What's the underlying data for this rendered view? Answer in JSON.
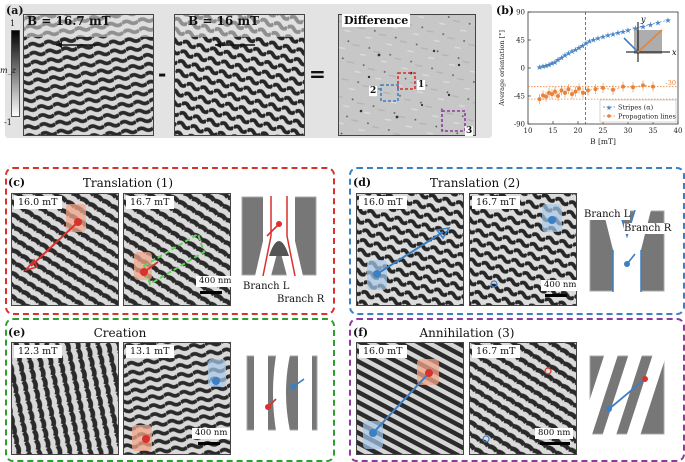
{
  "panel_a": {
    "label": "(a)",
    "img1_tag": "B = 16.7 mT",
    "img2_tag": "B = 16 mT",
    "diff_tag": "Difference",
    "minus": "-",
    "equals": "=",
    "colorbar_label": "m_z",
    "colorbar_max": "1",
    "colorbar_min": "-1",
    "box_labels": [
      "1",
      "2",
      "3"
    ]
  },
  "panel_b": {
    "label": "(b)",
    "chart_data": {
      "type": "scatter",
      "xlabel": "B [mT]",
      "ylabel": "Average orientation [°]",
      "xlim": [
        10,
        40
      ],
      "ylim": [
        -90,
        90
      ],
      "xticks": [
        "10",
        "15",
        "20",
        "25",
        "30",
        "35",
        "40"
      ],
      "yticks": [
        "-90",
        "-45",
        "0",
        "45",
        "90"
      ],
      "vline": 21.5,
      "hlines": [
        -30,
        -50
      ],
      "hline_labels": [
        "-30",
        "-50"
      ],
      "series": [
        {
          "name": "Stripes (α)",
          "marker": "star",
          "color": "#4a86c5",
          "x": [
            12.3,
            13,
            13.6,
            14.2,
            14.8,
            15.4,
            16,
            16.7,
            17.4,
            18.1,
            18.8,
            19.5,
            20.2,
            20.9,
            21.6,
            22.3,
            23.1,
            24,
            25,
            26,
            27,
            28,
            29,
            30,
            31.5,
            33,
            34.5,
            36,
            38
          ],
          "y": [
            2,
            3,
            4,
            6,
            8,
            10,
            14,
            17,
            21,
            24,
            27,
            30,
            33,
            36,
            40,
            43,
            46,
            48,
            51,
            53,
            55,
            57,
            59,
            61,
            64,
            67,
            70,
            73,
            77
          ]
        },
        {
          "name": "Propagation lines",
          "marker": "circle",
          "color": "#e8833a",
          "x": [
            12.3,
            13,
            13.6,
            14.2,
            14.8,
            15.4,
            16,
            16.7,
            17.4,
            18.1,
            18.8,
            19.5,
            20.2,
            21,
            22,
            23.5,
            25,
            27,
            29,
            31,
            33,
            35
          ],
          "y": [
            -50,
            -44,
            -46,
            -40,
            -42,
            -38,
            -45,
            -36,
            -40,
            -34,
            -42,
            -38,
            -33,
            -40,
            -36,
            -34,
            -32,
            -35,
            -30,
            -31,
            -28,
            -30
          ]
        }
      ]
    }
  },
  "panel_c": {
    "label": "(c)",
    "title": "Translation (1)",
    "tag1": "16.0 mT",
    "tag2": "16.7 mT",
    "scale": "400 nm",
    "branch_l": "Branch L",
    "branch_r": "Branch R"
  },
  "panel_d": {
    "label": "(d)",
    "title": "Translation (2)",
    "tag1": "16.0 mT",
    "tag2": "16.7 mT",
    "scale": "400 nm",
    "branch_l": "Branch L",
    "branch_r": "Branch R"
  },
  "panel_e": {
    "label": "(e)",
    "title": "Creation",
    "tag1": "12.3 mT",
    "tag2": "13.1 mT",
    "scale": "400 nm"
  },
  "panel_f": {
    "label": "(f)",
    "title": "Annihilation (3)",
    "tag1": "16.0 mT",
    "tag2": "16.7 mT",
    "scale": "800 nm"
  },
  "colors": {
    "red": "#d9312b",
    "blue": "#3b7fc4",
    "green": "#2ca02c",
    "purple": "#8e3a9d",
    "orange": "#e8833a"
  }
}
